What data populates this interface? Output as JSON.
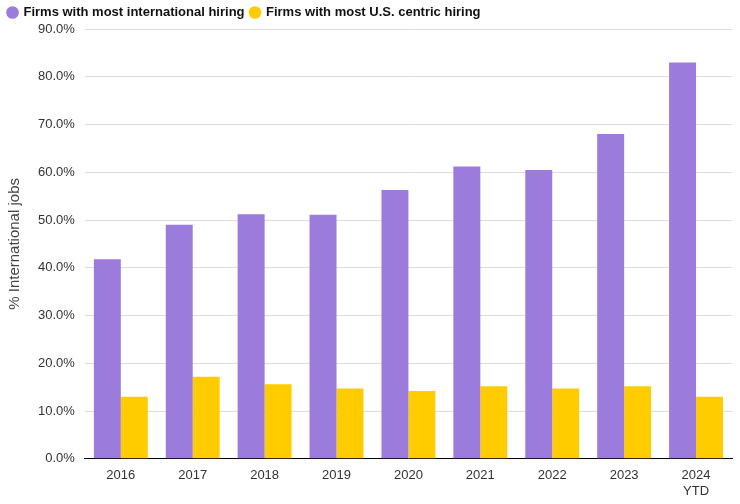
{
  "chart_data": {
    "type": "bar",
    "y_label": "% International jobs",
    "categories": [
      "2016",
      "2017",
      "2018",
      "2019",
      "2020",
      "2021",
      "2022",
      "2023",
      "2024\nYTD"
    ],
    "series": [
      {
        "name": "Firms with most international hiring",
        "color": "#9b7bdb",
        "values": [
          41.8,
          49.0,
          51.2,
          51.1,
          56.3,
          61.2,
          60.5,
          68.0,
          83.0
        ]
      },
      {
        "name": "Firms with most U.S. centric hiring",
        "color": "#ffcc00",
        "values": [
          13.0,
          17.2,
          15.6,
          14.7,
          14.2,
          15.2,
          14.7,
          15.2,
          13.0
        ]
      }
    ],
    "ylim": [
      0,
      90
    ],
    "yticks": [
      {
        "value": 0,
        "label": "0.0%"
      },
      {
        "value": 10,
        "label": "10.0%"
      },
      {
        "value": 20,
        "label": "20.0%"
      },
      {
        "value": 30,
        "label": "30.0%"
      },
      {
        "value": 40,
        "label": "40.0%"
      },
      {
        "value": 50,
        "label": "50.0%"
      },
      {
        "value": 60,
        "label": "60.0%"
      },
      {
        "value": 70,
        "label": "70.0%"
      },
      {
        "value": 80,
        "label": "80.0%"
      },
      {
        "value": 90,
        "label": "90.0%"
      }
    ],
    "grid": true,
    "legend": "top-left"
  }
}
